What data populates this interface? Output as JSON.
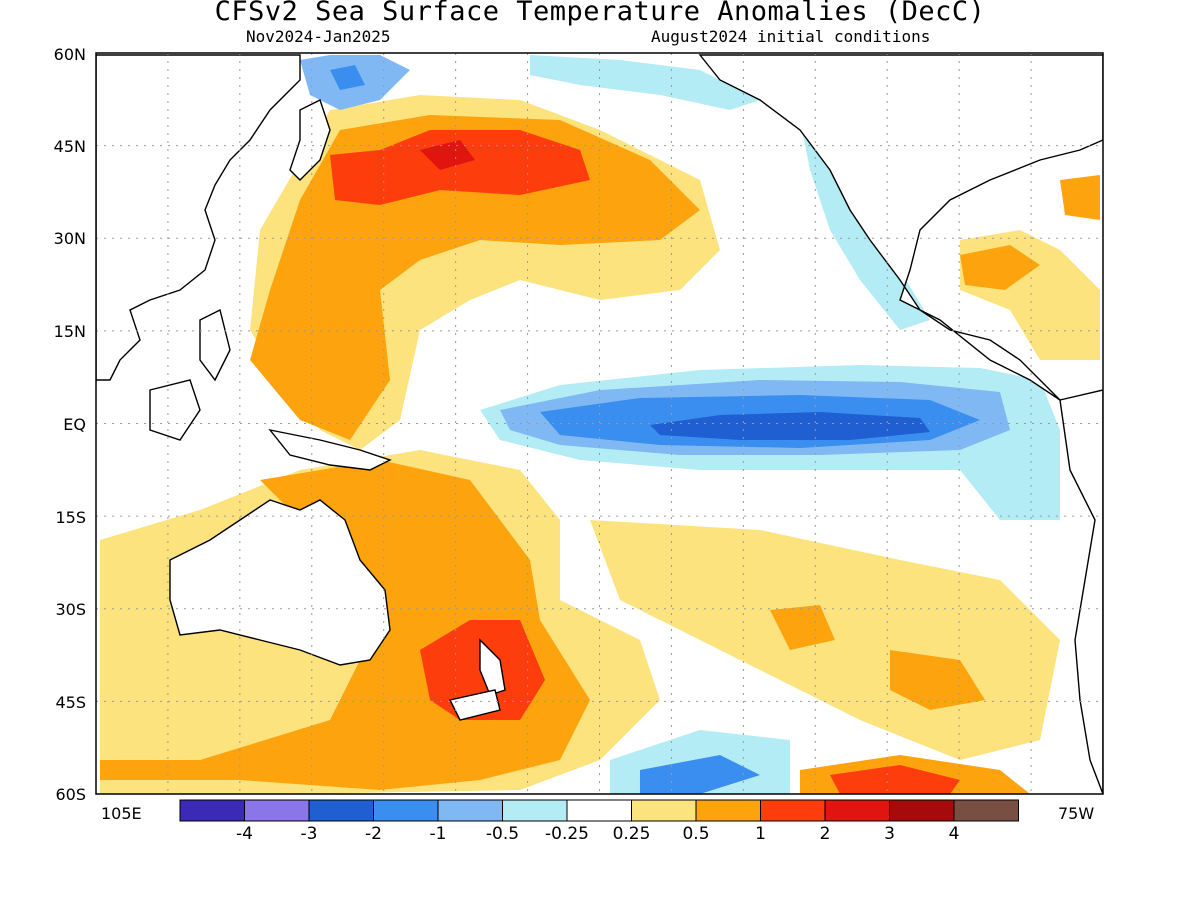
{
  "title": "CFSv2 Sea Surface Temperature Anomalies (DecC)",
  "period": "Nov2024-Jan2025",
  "initial_conditions": "August2024 initial conditions",
  "lat_labels": [
    "60N",
    "45N",
    "30N",
    "15N",
    "EQ",
    "15S",
    "30S",
    "45S",
    "60S"
  ],
  "lon_labels": {
    "west": "105E",
    "east": "75W"
  },
  "colorbar": {
    "ticks": [
      "-4",
      "-3",
      "-2",
      "-1",
      "-0.5",
      "-0.25",
      "0.25",
      "0.5",
      "1",
      "2",
      "3",
      "4"
    ],
    "colors": [
      "#3b2ab5",
      "#8a76e8",
      "#1f5fd1",
      "#3a8ef0",
      "#7fb8f3",
      "#b3ecf5",
      "#ffffff",
      "#fde37e",
      "#fca30e",
      "#fd3d0b",
      "#e0150f",
      "#a50b0b",
      "#7a4f43"
    ]
  },
  "colors": {
    "neg_strong": "#1f5fd1",
    "neg_mid": "#3a8ef0",
    "neg_weak": "#7fb8f3",
    "neg_faint": "#b3ecf5",
    "pos_faint": "#fde37e",
    "pos_mid": "#fca30e",
    "pos_strong": "#fd3d0b",
    "pos_max": "#e0150f",
    "land_outline": "#000000",
    "grid": "#9a9a9a"
  }
}
